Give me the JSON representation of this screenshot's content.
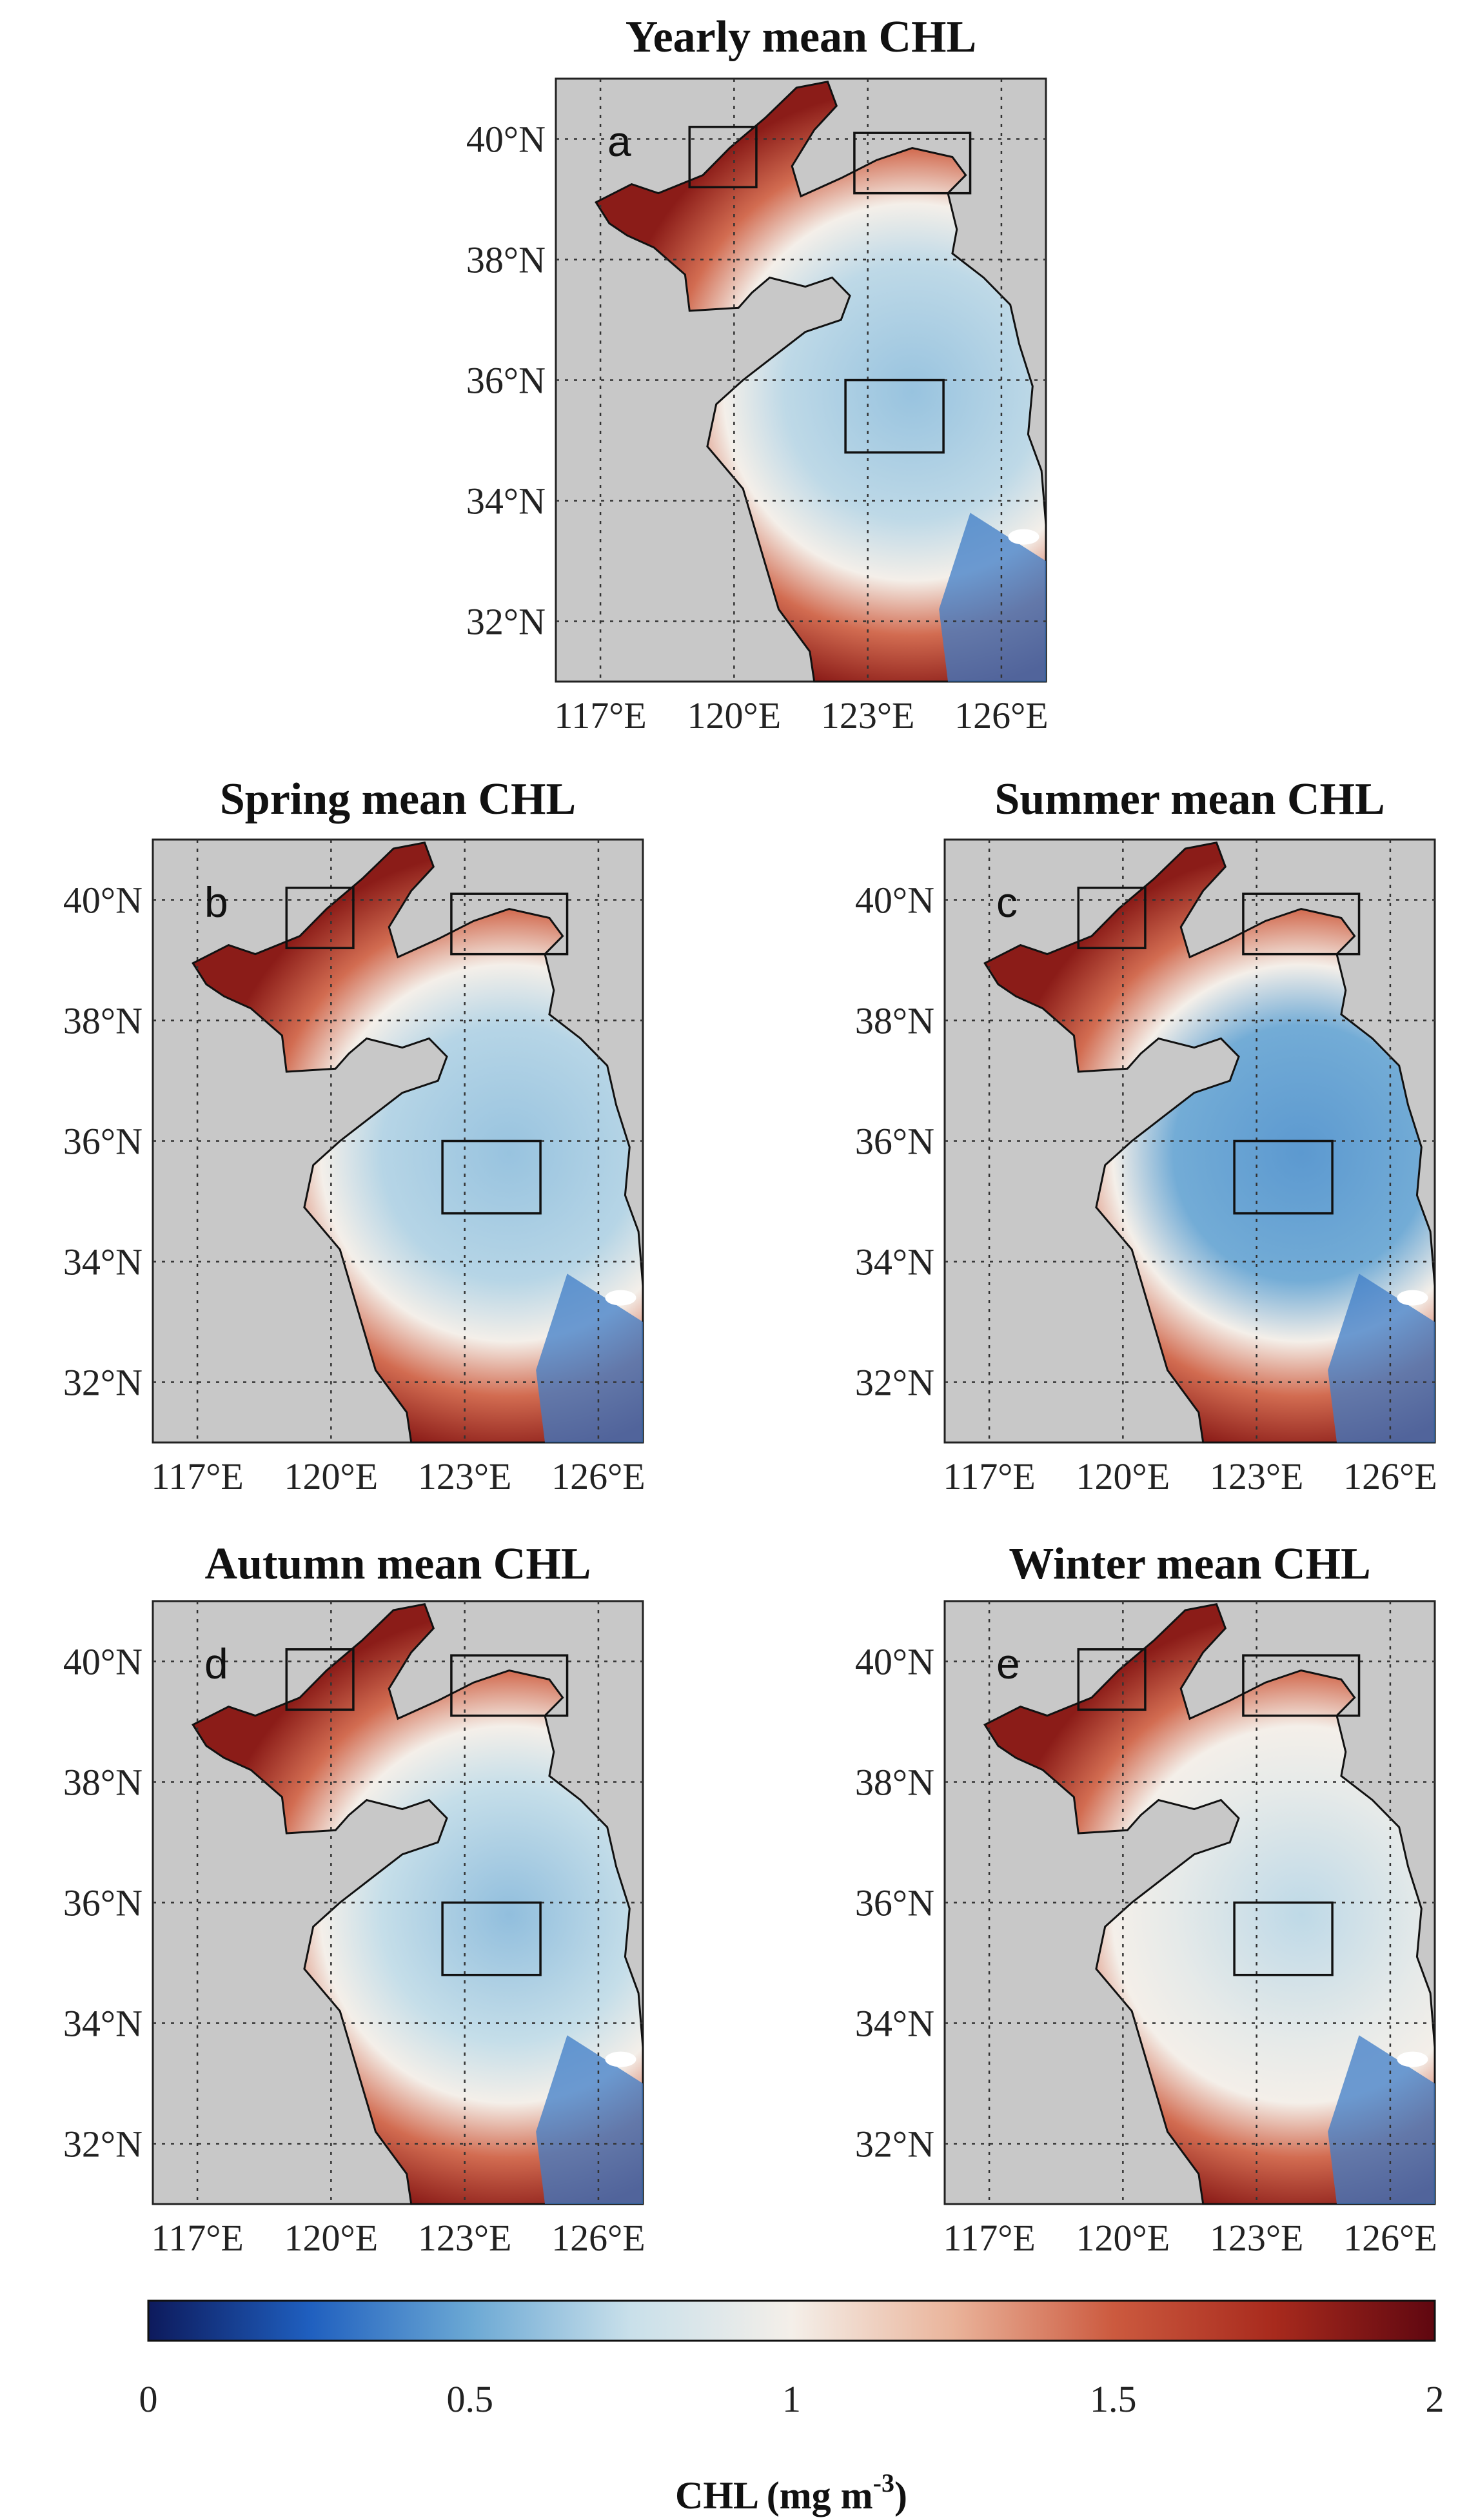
{
  "chart_data": {
    "type": "heatmap",
    "variable": "CHL",
    "colorbar": {
      "label": "CHL (mg m",
      "label_exp": "-3",
      "label_close": ")",
      "min": 0,
      "max": 2,
      "ticks": [
        "0",
        "0.5",
        "1",
        "1.5",
        "2"
      ],
      "colors": [
        "#0d1a5c",
        "#1f5fbf",
        "#6ba8d4",
        "#c9e0ea",
        "#f4efe9",
        "#eab49b",
        "#cc5a3f",
        "#a82a1d",
        "#5f0710"
      ]
    },
    "lat_range": [
      31,
      41
    ],
    "lon_range": [
      116,
      127
    ],
    "x_ticks": [
      "117°E",
      "120°E",
      "123°E",
      "126°E"
    ],
    "y_ticks": [
      "32°N",
      "34°N",
      "36°N",
      "38°N",
      "40°N"
    ],
    "roi_boxes_deg": [
      {
        "lon": [
          119.0,
          120.5
        ],
        "lat": [
          39.2,
          40.2
        ]
      },
      {
        "lon": [
          122.7,
          125.3
        ],
        "lat": [
          39.1,
          40.1
        ]
      },
      {
        "lon": [
          122.5,
          124.7
        ],
        "lat": [
          34.8,
          36.0
        ]
      }
    ],
    "panels": [
      {
        "label": "a",
        "title": "Yearly mean CHL",
        "open_sea_chl": 0.62,
        "mid_sea_chl": 0.72
      },
      {
        "label": "b",
        "title": "Spring mean CHL",
        "open_sea_chl": 0.62,
        "mid_sea_chl": 0.7
      },
      {
        "label": "c",
        "title": "Summer mean CHL",
        "open_sea_chl": 0.45,
        "mid_sea_chl": 0.52
      },
      {
        "label": "d",
        "title": "Autumn mean CHL",
        "open_sea_chl": 0.6,
        "mid_sea_chl": 0.74
      },
      {
        "label": "e",
        "title": "Winter mean CHL",
        "open_sea_chl": 0.72,
        "mid_sea_chl": 0.92
      }
    ]
  }
}
